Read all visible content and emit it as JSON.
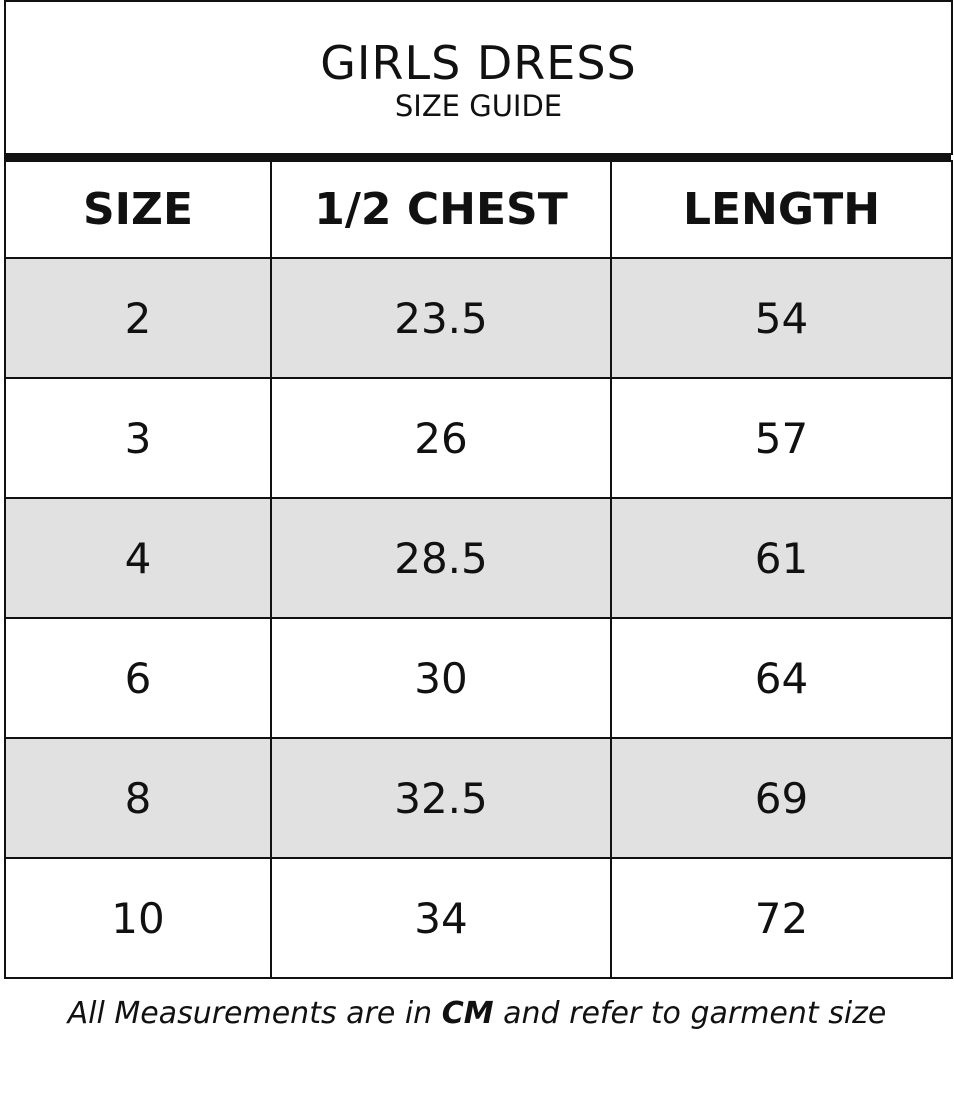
{
  "header": {
    "title": "GIRLS DRESS",
    "subtitle": "SIZE GUIDE"
  },
  "table": {
    "columns": [
      "SIZE",
      "1/2 CHEST",
      "LENGTH"
    ],
    "rows": [
      [
        "2",
        "23.5",
        "54"
      ],
      [
        "3",
        "26",
        "57"
      ],
      [
        "4",
        "28.5",
        "61"
      ],
      [
        "6",
        "30",
        "64"
      ],
      [
        "8",
        "32.5",
        "69"
      ],
      [
        "10",
        "34",
        "72"
      ]
    ],
    "shade_color": "#e0e1e0"
  },
  "footer": {
    "before": "All Measurements are in ",
    "unit": "CM",
    "after": " and refer to garment size"
  }
}
